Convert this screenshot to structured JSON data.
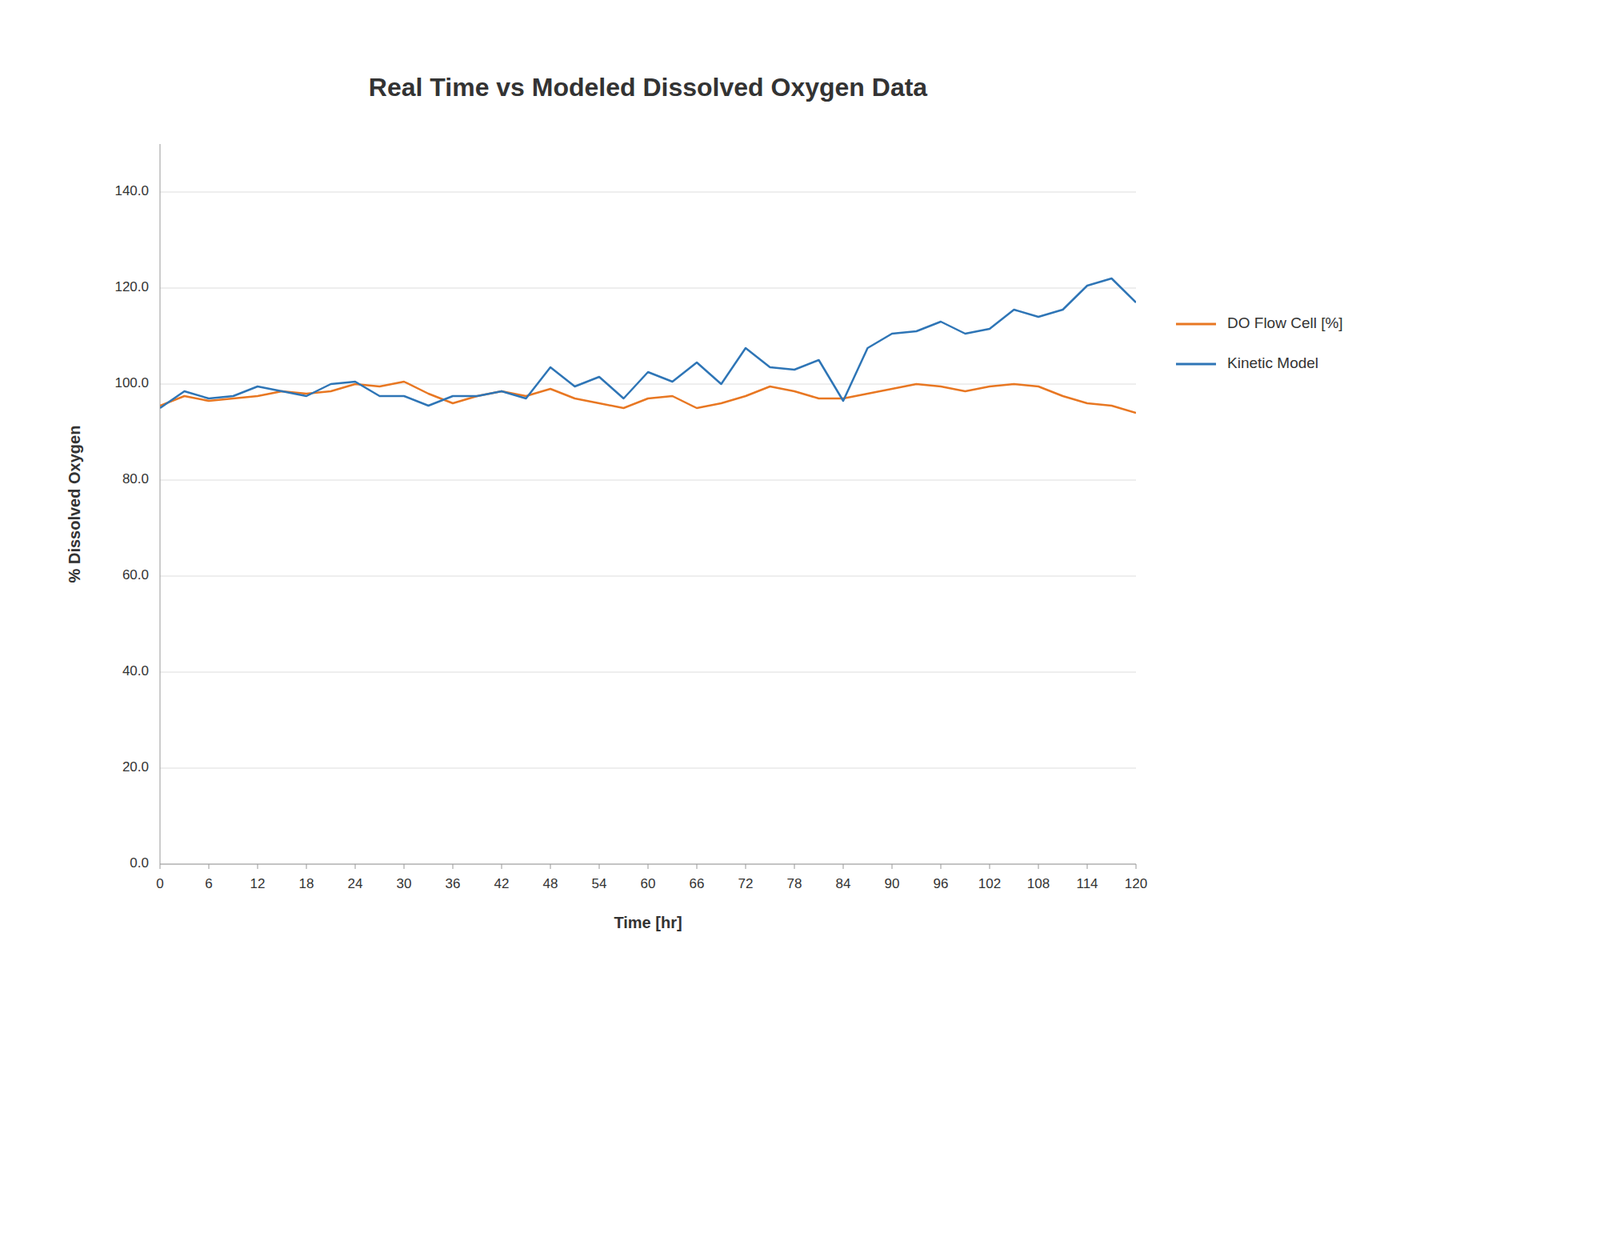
{
  "chart_data": {
    "type": "line",
    "title": "Real Time vs Modeled Dissolved Oxygen Data",
    "xlabel": "Time [hr]",
    "ylabel": "% Dissolved Oxygen",
    "x": [
      0,
      3,
      6,
      9,
      12,
      15,
      18,
      21,
      24,
      27,
      30,
      33,
      36,
      39,
      42,
      45,
      48,
      51,
      54,
      57,
      60,
      63,
      66,
      69,
      72,
      75,
      78,
      81,
      84,
      87,
      90,
      93,
      96,
      99,
      102,
      105,
      108,
      111,
      114,
      117,
      120
    ],
    "series": [
      {
        "name": "DO Flow Cell [%]",
        "color": "#E87722",
        "values": [
          95.5,
          97.5,
          96.5,
          97.0,
          97.5,
          98.5,
          98.0,
          98.5,
          100.0,
          99.5,
          100.5,
          98.0,
          96.0,
          97.5,
          98.5,
          97.5,
          99.0,
          97.0,
          96.0,
          95.0,
          97.0,
          97.5,
          95.0,
          96.0,
          97.5,
          99.5,
          98.5,
          97.0,
          97.0,
          98.0,
          99.0,
          100.0,
          99.5,
          98.5,
          99.5,
          100.0,
          99.5,
          97.5,
          96.0,
          95.5,
          94.0
        ]
      },
      {
        "name": "Kinetic Model",
        "color": "#2E75B6",
        "values": [
          95.0,
          98.5,
          97.0,
          97.5,
          99.5,
          98.5,
          97.5,
          100.0,
          100.5,
          97.5,
          97.5,
          95.5,
          97.5,
          97.5,
          98.5,
          97.0,
          103.5,
          99.5,
          101.5,
          97.0,
          102.5,
          100.5,
          104.5,
          100.0,
          107.5,
          103.5,
          103.0,
          105.0,
          96.5,
          107.5,
          110.5,
          111.0,
          113.0,
          110.5,
          111.5,
          115.5,
          114.0,
          115.5,
          120.5,
          122.0,
          117.0
        ]
      }
    ],
    "xlim": [
      0,
      120
    ],
    "xticks": [
      0,
      6,
      12,
      18,
      24,
      30,
      36,
      42,
      48,
      54,
      60,
      66,
      72,
      78,
      84,
      90,
      96,
      102,
      108,
      114,
      120
    ],
    "ylim": [
      0,
      150
    ],
    "yticks": [
      {
        "value": 0.0,
        "label": "0.0"
      },
      {
        "value": 20.0,
        "label": "20.0"
      },
      {
        "value": 40.0,
        "label": "40.0"
      },
      {
        "value": 60.0,
        "label": "60.0"
      },
      {
        "value": 80.0,
        "label": "80.0"
      },
      {
        "value": 100.0,
        "label": "100.0"
      },
      {
        "value": 120.0,
        "label": "120.0"
      },
      {
        "value": 140.0,
        "label": "140.0"
      }
    ],
    "grid": true,
    "legend": "right"
  }
}
